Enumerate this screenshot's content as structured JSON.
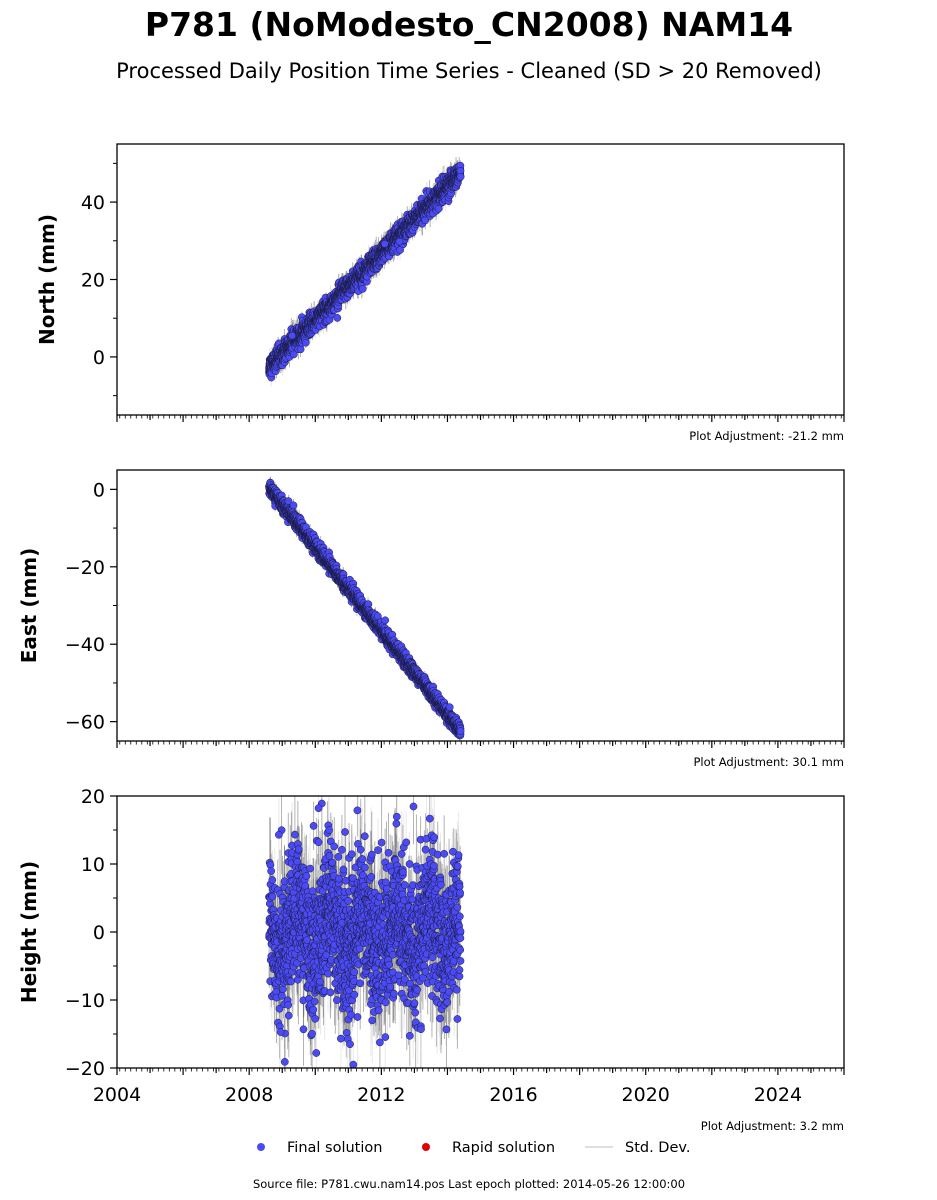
{
  "title": "P781 (NoModesto_CN2008) NAM14",
  "subtitle": "Processed Daily Position Time Series - Cleaned (SD > 20 Removed)",
  "legend": {
    "final": "Final solution",
    "rapid": "Rapid solution",
    "std": "Std. Dev."
  },
  "footer": "Source file: P781.cwu.nam14.pos  Last epoch plotted: 2014-05-26 12:00:00",
  "colors": {
    "final": "#4b4bf5",
    "rapid": "#e00000",
    "std": "#d3d3d3",
    "stdDark": "#666666"
  },
  "chart_data": [
    {
      "type": "scatter",
      "name": "north",
      "ylabel": "North (mm)",
      "ylim": [
        -15,
        55
      ],
      "yticks": [
        0,
        20,
        40
      ],
      "xlim": [
        2004,
        2026
      ],
      "adjustment": "Plot Adjustment: -21.2 mm",
      "series": [
        {
          "name": "Final solution",
          "trend": {
            "x0": 2008.6,
            "y0": -2.5,
            "x1": 2014.4,
            "y1": 47.5
          },
          "noise_sd": 1.3,
          "std_dev": 2.2,
          "outliers": [
            [
              2012.1,
              29.2
            ],
            [
              2012.55,
              29.8
            ],
            [
              2009.3,
              5.5
            ]
          ]
        }
      ]
    },
    {
      "type": "scatter",
      "name": "east",
      "ylabel": "East (mm)",
      "ylim": [
        -65,
        5
      ],
      "yticks": [
        0,
        -20,
        -40,
        -60
      ],
      "xlim": [
        2004,
        2026
      ],
      "adjustment": "Plot Adjustment: 30.1 mm",
      "series": [
        {
          "name": "Final solution",
          "trend": {
            "x0": 2008.6,
            "y0": 0.5,
            "x1": 2014.4,
            "y1": -62.5
          },
          "noise_sd": 0.9,
          "std_dev": 1.5,
          "outliers": []
        }
      ]
    },
    {
      "type": "scatter",
      "name": "height",
      "ylabel": "Height (mm)",
      "ylim": [
        -20,
        20
      ],
      "yticks": [
        20,
        10,
        0,
        -10,
        -20
      ],
      "xlim": [
        2004,
        2026
      ],
      "xticks": [
        2004,
        2008,
        2012,
        2016,
        2020,
        2024
      ],
      "adjustment": "Plot Adjustment: 3.2 mm",
      "series": [
        {
          "name": "Final solution",
          "trend": {
            "x0": 2008.6,
            "y0": 0,
            "x1": 2014.4,
            "y1": 0
          },
          "noise_sd": 5,
          "std_dev": 5.5,
          "outliers": [
            [
              2008.9,
              14.3
            ],
            [
              2009.95,
              15.6
            ],
            [
              2010.1,
              18.2
            ],
            [
              2010.1,
              13.2
            ],
            [
              2010.9,
              14.7
            ],
            [
              2011.15,
              -19.5
            ],
            [
              2011.05,
              -16.5
            ],
            [
              2008.95,
              -14.7
            ],
            [
              2013.2,
              -14.3
            ],
            [
              2014.3,
              -12.8
            ],
            [
              2009.2,
              -12.3
            ],
            [
              2013.9,
              11.5
            ]
          ]
        }
      ]
    }
  ]
}
